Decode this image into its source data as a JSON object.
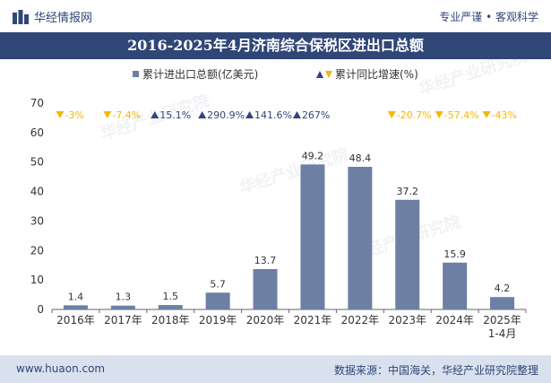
{
  "header": {
    "brand_name": "华经情报网",
    "slogan": "专业严谨 • 客观科学"
  },
  "title": "2016-2025年4月济南综合保税区进出口总额",
  "watermark": "华经产业研究院",
  "colors": {
    "bar": "#6d7fa3",
    "up": "#2f4677",
    "down": "#f5b800",
    "accent": "#2f4677"
  },
  "chart_data": {
    "type": "bar",
    "title": "2016-2025年4月济南综合保税区进出口总额",
    "categories": [
      "2016年",
      "2017年",
      "2018年",
      "2019年",
      "2020年",
      "2021年",
      "2022年",
      "2023年",
      "2024年",
      "2025年\n1-4月"
    ],
    "series": [
      {
        "name": "累计进出口总额(亿美元)",
        "values": [
          1.4,
          1.3,
          1.5,
          5.7,
          13.7,
          49.2,
          48.4,
          37.2,
          15.9,
          4.2
        ]
      }
    ],
    "bar_labels": [
      "1.4",
      "1.3",
      "1.5",
      "5.7",
      "13.7",
      "49.2",
      "48.4",
      "37.2",
      "15.9",
      "4.2"
    ],
    "growth": {
      "name": "累计同比增速(%)",
      "values": [
        -3,
        -7.4,
        15.1,
        290.9,
        141.6,
        267,
        null,
        -20.7,
        -57.4,
        -43
      ],
      "labels": [
        "-3%",
        "-7.4%",
        "15.1%",
        "290.9%",
        "141.6%",
        "267%",
        "",
        "-20.7%",
        "-57.4%",
        "-43%"
      ]
    },
    "ylim": [
      0,
      70
    ],
    "yticks": [
      0,
      10,
      20,
      30,
      40,
      50,
      60,
      70
    ],
    "legend_position": "top-center",
    "grid": false
  },
  "footer": {
    "url": "www.huaon.com",
    "source": "数据来源：中国海关，华经产业研究院整理"
  }
}
